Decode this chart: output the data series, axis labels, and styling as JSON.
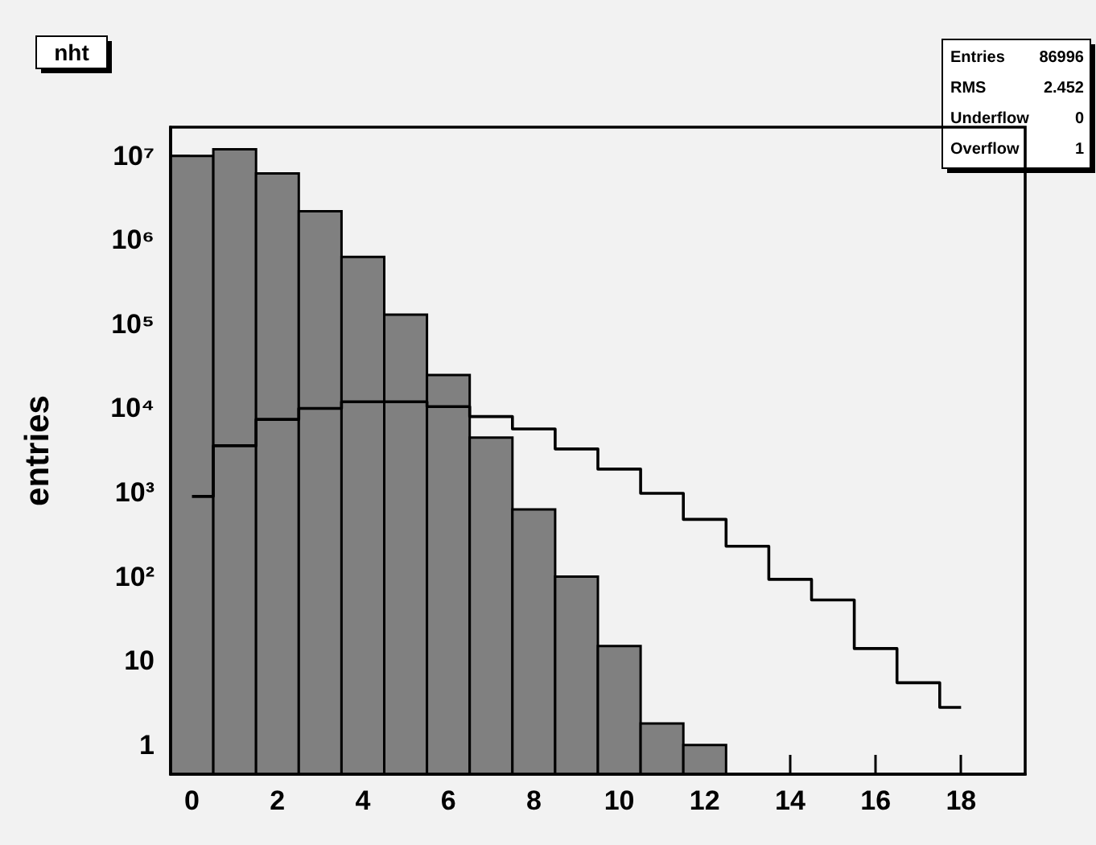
{
  "chart_data": {
    "type": "histogram",
    "title": "nht",
    "ylabel": "entries",
    "bins": [
      -0.5,
      0.5,
      1.5,
      2.5,
      3.5,
      4.5,
      5.5,
      6.5,
      7.5,
      8.5,
      9.5,
      10.5,
      11.5,
      12.5
    ],
    "series": [
      {
        "color": "#808080",
        "values": [
          10000000,
          12000000,
          6200000,
          2200000,
          630000,
          130000,
          25000,
          4500,
          630,
          100,
          15,
          1.8,
          1
        ]
      },
      {
        "type": "step",
        "color": "#000000",
        "x": [
          0,
          1,
          2,
          3,
          4,
          5,
          6,
          7,
          8,
          9,
          10,
          11,
          12,
          13,
          14,
          15,
          16,
          17,
          18
        ],
        "values": [
          900,
          3600,
          7400,
          10000,
          12000,
          12000,
          10500,
          8000,
          5700,
          3300,
          1900,
          980,
          480,
          230,
          93,
          53,
          14,
          5.5,
          2.8
        ]
      }
    ],
    "annotations": [
      "Entries 86996",
      "RMS 2.452",
      "Underflow 0",
      "Overflow 1"
    ],
    "log": "y",
    "grid": false,
    "xlim": [
      -0.5,
      19.5
    ],
    "xticks": [
      0,
      2,
      4,
      6,
      8,
      10,
      12,
      14,
      16,
      18
    ],
    "ylim": [
      0.45,
      22000000
    ],
    "yticks": [
      {
        "value": 1,
        "label": "1"
      },
      {
        "value": 10,
        "label": "10"
      },
      {
        "value": 100,
        "label": "10²"
      },
      {
        "value": 1000,
        "label": "10³"
      },
      {
        "value": 10000,
        "label": "10⁴"
      },
      {
        "value": 100000,
        "label": "10⁵"
      },
      {
        "value": 1000000,
        "label": "10⁶"
      },
      {
        "value": 10000000,
        "label": "10⁷"
      }
    ]
  }
}
